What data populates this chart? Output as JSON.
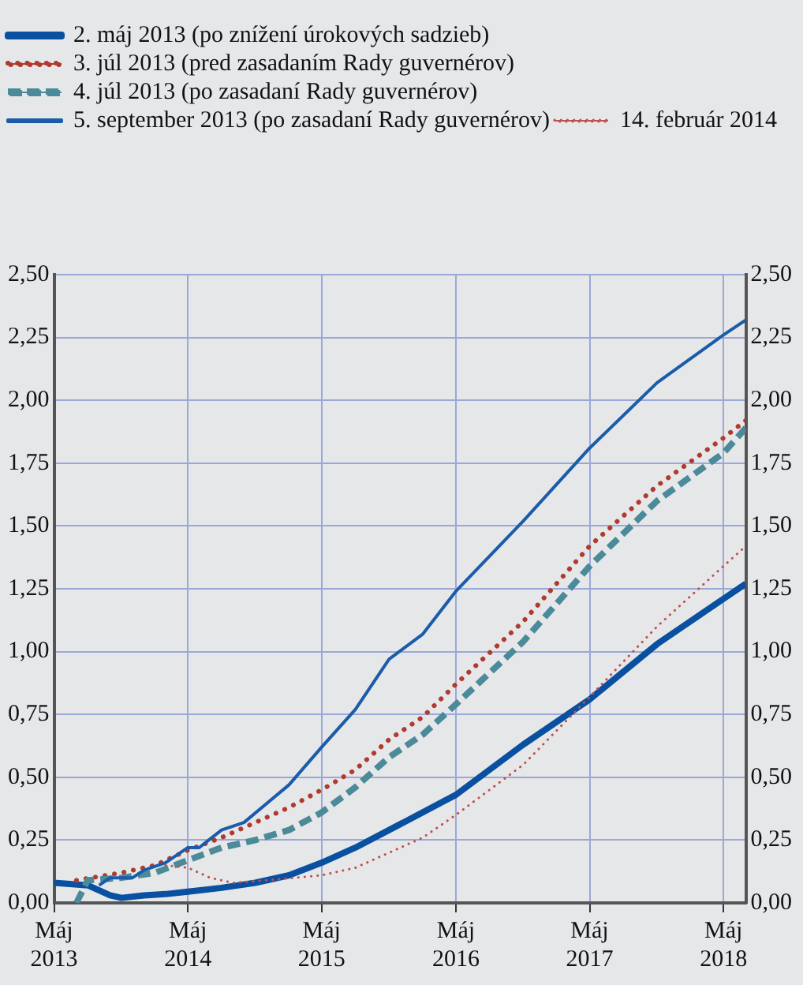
{
  "chart_data": {
    "type": "line",
    "xlim": [
      "2013-05",
      "2018-07"
    ],
    "xticks": [
      {
        "value": "2013-05",
        "label": "Máj\n2013"
      },
      {
        "value": "2014-05",
        "label": "Máj\n2014"
      },
      {
        "value": "2015-05",
        "label": "Máj\n2015"
      },
      {
        "value": "2016-05",
        "label": "Máj\n2016"
      },
      {
        "value": "2017-05",
        "label": "Máj\n2017"
      },
      {
        "value": "2018-05",
        "label": "Máj\n2018"
      }
    ],
    "ylim": [
      0,
      2.5
    ],
    "yticks": [
      {
        "value": 0,
        "label": "0,00"
      },
      {
        "value": 0.25,
        "label": "0,25"
      },
      {
        "value": 0.5,
        "label": "0,50"
      },
      {
        "value": 0.75,
        "label": "0,75"
      },
      {
        "value": 1,
        "label": "1,00"
      },
      {
        "value": 1.25,
        "label": "1,25"
      },
      {
        "value": 1.5,
        "label": "1,50"
      },
      {
        "value": 1.75,
        "label": "1,75"
      },
      {
        "value": 2,
        "label": "2,00"
      },
      {
        "value": 2.25,
        "label": "2,25"
      },
      {
        "value": 2.5,
        "label": "2,50"
      }
    ],
    "y2lim": [
      0,
      2.5
    ],
    "y2ticks": [
      {
        "value": 0,
        "label": "0,00"
      },
      {
        "value": 0.25,
        "label": "0,25"
      },
      {
        "value": 0.5,
        "label": "0,50"
      },
      {
        "value": 0.75,
        "label": "0,75"
      },
      {
        "value": 1,
        "label": "1,00"
      },
      {
        "value": 1.25,
        "label": "1,25"
      },
      {
        "value": 1.5,
        "label": "1,50"
      },
      {
        "value": 1.75,
        "label": "1,75"
      },
      {
        "value": 2,
        "label": "2,00"
      },
      {
        "value": 2.25,
        "label": "2,25"
      },
      {
        "value": 2.5,
        "label": "2,50"
      }
    ],
    "grid": true,
    "legend": "top left",
    "marker": "none",
    "series": [
      {
        "name": "2. máj 2013 (po znížení úrokových sadzieb)",
        "color": "#0a50a0",
        "line_style": "solid",
        "x": [
          "2013-05",
          "2013-08",
          "2013-10",
          "2013-11",
          "2014-01",
          "2014-03",
          "2014-05",
          "2014-08",
          "2014-11",
          "2015-02",
          "2015-05",
          "2015-08",
          "2015-11",
          "2016-05",
          "2016-11",
          "2017-05",
          "2017-11",
          "2018-05",
          "2018-07"
        ],
        "values": [
          0.08,
          0.07,
          0.03,
          0.02,
          0.03,
          0.035,
          0.045,
          0.06,
          0.08,
          0.11,
          0.16,
          0.22,
          0.29,
          0.43,
          0.63,
          0.81,
          1.03,
          1.21,
          1.27
        ]
      },
      {
        "name": "3. júl 2013 (pred zasadaním Rady guvernérov)",
        "color": "#b03a2e",
        "line_style": "dotted",
        "x": [
          "2013-07",
          "2013-11",
          "2014-02",
          "2014-05",
          "2014-08",
          "2014-11",
          "2015-02",
          "2015-05",
          "2015-08",
          "2015-11",
          "2016-02",
          "2016-05",
          "2016-11",
          "2017-05",
          "2017-11",
          "2018-05",
          "2018-07"
        ],
        "values": [
          0.09,
          0.12,
          0.15,
          0.21,
          0.26,
          0.32,
          0.38,
          0.45,
          0.53,
          0.65,
          0.74,
          0.87,
          1.12,
          1.42,
          1.66,
          1.85,
          1.92
        ]
      },
      {
        "name": "4. júl 2013 (po zasadaní Rady guvernérov)",
        "color": "#4a8a99",
        "line_style": "dashed",
        "x": [
          "2013-07",
          "2013-08",
          "2013-11",
          "2014-02",
          "2014-05",
          "2014-08",
          "2014-11",
          "2015-02",
          "2015-05",
          "2015-08",
          "2015-11",
          "2016-02",
          "2016-05",
          "2016-11",
          "2017-05",
          "2017-11",
          "2018-05",
          "2018-07"
        ],
        "values": [
          0.0,
          0.09,
          0.1,
          0.12,
          0.17,
          0.22,
          0.25,
          0.29,
          0.36,
          0.46,
          0.58,
          0.67,
          0.79,
          1.04,
          1.34,
          1.6,
          1.79,
          1.89
        ]
      },
      {
        "name": "5. september 2013 (po zasadaní Rady guvernérov)",
        "color": "#1a5caa",
        "line_style": "solid",
        "x": [
          "2013-09",
          "2013-10",
          "2013-12",
          "2014-01",
          "2014-03",
          "2014-05",
          "2014-06",
          "2014-08",
          "2014-10",
          "2015-02",
          "2015-05",
          "2015-08",
          "2015-11",
          "2016-02",
          "2016-05",
          "2016-11",
          "2017-05",
          "2017-11",
          "2018-05",
          "2018-07"
        ],
        "values": [
          0.07,
          0.1,
          0.1,
          0.13,
          0.16,
          0.22,
          0.22,
          0.29,
          0.32,
          0.47,
          0.62,
          0.77,
          0.97,
          1.07,
          1.24,
          1.52,
          1.81,
          2.07,
          2.26,
          2.32
        ]
      },
      {
        "name": "14. február 2014",
        "color": "#c0504d",
        "line_style": "dotted",
        "x": [
          "2014-03",
          "2014-05",
          "2014-07",
          "2014-09",
          "2014-12",
          "2015-05",
          "2015-08",
          "2015-11",
          "2016-02",
          "2016-05",
          "2016-11",
          "2017-05",
          "2017-11",
          "2018-05",
          "2018-07"
        ],
        "values": [
          0.15,
          0.14,
          0.1,
          0.08,
          0.09,
          0.11,
          0.14,
          0.2,
          0.26,
          0.35,
          0.55,
          0.82,
          1.1,
          1.34,
          1.42
        ]
      }
    ]
  }
}
